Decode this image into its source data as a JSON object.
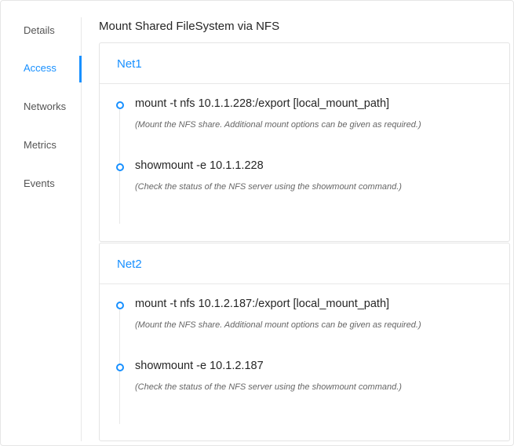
{
  "sidebar": {
    "items": [
      {
        "label": "Details",
        "active": false
      },
      {
        "label": "Access",
        "active": true
      },
      {
        "label": "Networks",
        "active": false
      },
      {
        "label": "Metrics",
        "active": false
      },
      {
        "label": "Events",
        "active": false
      }
    ]
  },
  "accent_color": "#1890ff",
  "main": {
    "title": "Mount Shared FileSystem via NFS",
    "networks": [
      {
        "name": "Net1",
        "steps": [
          {
            "command": "mount -t nfs 10.1.1.228:/export [local_mount_path]",
            "description": "(Mount the NFS share. Additional mount options can be given as required.)"
          },
          {
            "command": "showmount -e 10.1.1.228",
            "description": "(Check the status of the NFS server using the showmount command.)"
          }
        ]
      },
      {
        "name": "Net2",
        "steps": [
          {
            "command": "mount -t nfs 10.1.2.187:/export [local_mount_path]",
            "description": "(Mount the NFS share. Additional mount options can be given as required.)"
          },
          {
            "command": "showmount -e 10.1.2.187",
            "description": "(Check the status of the NFS server using the showmount command.)"
          }
        ]
      }
    ]
  }
}
